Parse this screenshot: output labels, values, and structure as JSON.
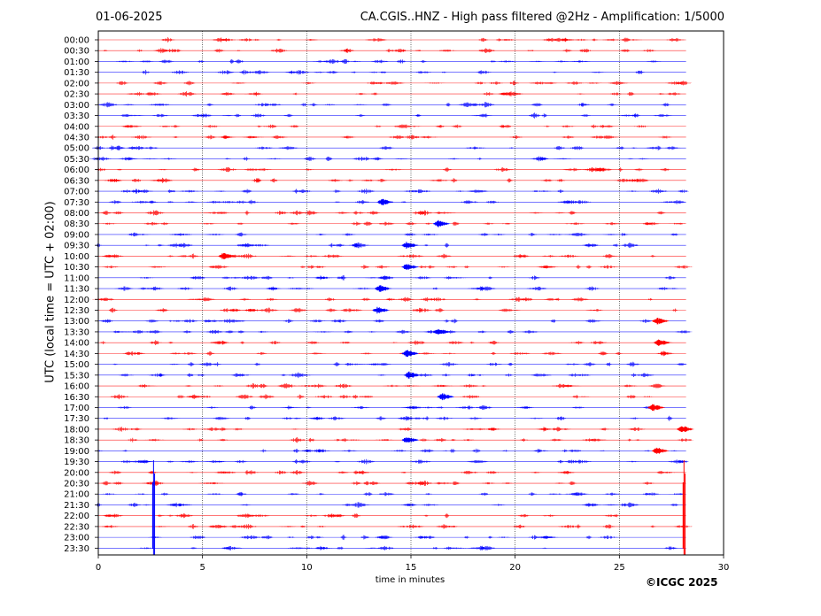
{
  "header": {
    "date": "01-06-2025",
    "title": "CA.CGIS..HNZ - High pass filtered @2Hz - Amplification: 1/5000"
  },
  "footer": {
    "copyright": "©ICGC 2025"
  },
  "colors": {
    "red": "#ff0000",
    "blue": "#0000ff",
    "grid": "#000000"
  },
  "chart_data": {
    "type": "line",
    "title": "CA.CGIS..HNZ - High pass filtered @2Hz - Amplification: 1/5000",
    "xlabel": "time in minutes",
    "ylabel": "UTC (local time = UTC + 02:00)",
    "xlim": [
      0,
      30
    ],
    "x_ticks": [
      "0",
      "5",
      "10",
      "15",
      "20",
      "25",
      "30"
    ],
    "row_labels": [
      "00:00",
      "00:30",
      "01:00",
      "01:30",
      "02:00",
      "02:30",
      "03:00",
      "03:30",
      "04:00",
      "04:30",
      "05:00",
      "05:30",
      "06:00",
      "06:30",
      "07:00",
      "07:30",
      "08:00",
      "08:30",
      "09:00",
      "09:30",
      "10:00",
      "10:30",
      "11:00",
      "11:30",
      "12:00",
      "12:30",
      "13:00",
      "13:30",
      "14:00",
      "14:30",
      "15:00",
      "15:30",
      "16:00",
      "16:30",
      "17:00",
      "17:30",
      "18:00",
      "18:30",
      "19:00",
      "19:30",
      "20:00",
      "20:30",
      "21:00",
      "21:30",
      "22:00",
      "22:30",
      "23:00",
      "23:30"
    ],
    "trace_end_minutes": 28.2,
    "vertical_grid_minutes": [
      5,
      10,
      15,
      20,
      25
    ],
    "events": [
      {
        "row": "07:30",
        "minute": 13.6,
        "color": "blue"
      },
      {
        "row": "08:30",
        "minute": 16.3,
        "color": "blue"
      },
      {
        "row": "09:30",
        "minute": 14.8,
        "color": "blue"
      },
      {
        "row": "10:00",
        "minute": 6.0,
        "color": "red"
      },
      {
        "row": "10:30",
        "minute": 14.8,
        "color": "blue"
      },
      {
        "row": "11:30",
        "minute": 13.5,
        "color": "blue"
      },
      {
        "row": "12:30",
        "minute": 13.4,
        "color": "blue"
      },
      {
        "row": "13:00",
        "minute": 26.8,
        "color": "red"
      },
      {
        "row": "13:30",
        "minute": 16.3,
        "color": "blue"
      },
      {
        "row": "14:00",
        "minute": 26.9,
        "color": "red"
      },
      {
        "row": "14:30",
        "minute": 14.8,
        "color": "blue"
      },
      {
        "row": "15:30",
        "minute": 14.9,
        "color": "blue"
      },
      {
        "row": "16:30",
        "minute": 16.5,
        "color": "blue"
      },
      {
        "row": "17:00",
        "minute": 26.6,
        "color": "red"
      },
      {
        "row": "18:00",
        "minute": 28.0,
        "color": "red"
      },
      {
        "row": "18:30",
        "minute": 14.8,
        "color": "blue"
      },
      {
        "row": "19:00",
        "minute": 26.8,
        "color": "red"
      }
    ],
    "spikes": [
      {
        "minute": 2.65,
        "color": "blue"
      },
      {
        "minute": 28.1,
        "color": "red"
      }
    ]
  }
}
